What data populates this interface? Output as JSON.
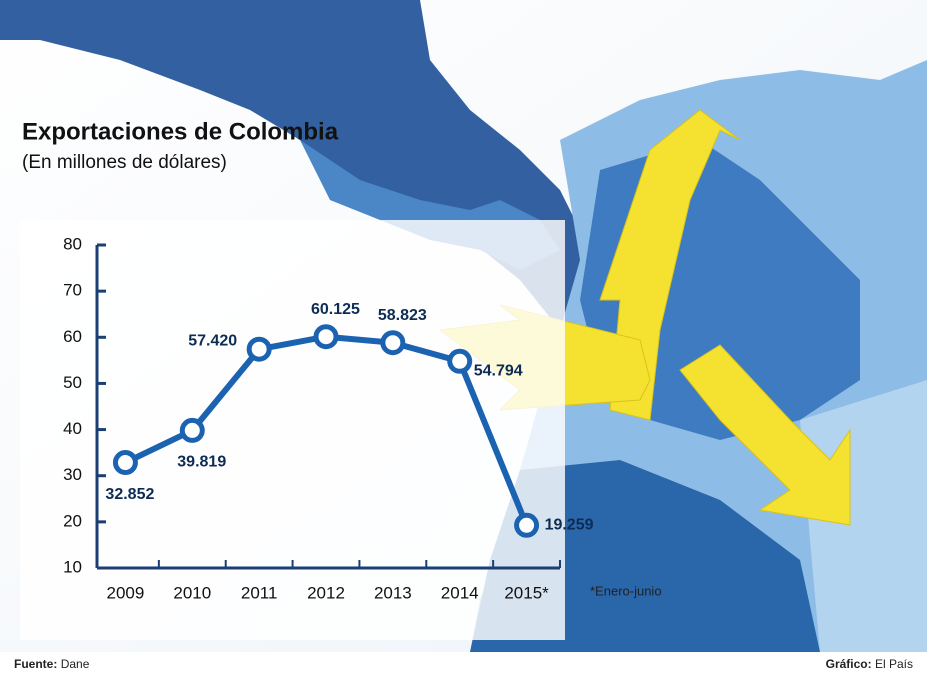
{
  "chart_data": {
    "type": "line",
    "title": "Exportaciones de Colombia",
    "subtitle": "(En millones de dólares)",
    "categories": [
      "2009",
      "2010",
      "2011",
      "2012",
      "2013",
      "2014",
      "2015*"
    ],
    "series": [
      {
        "name": "Exportaciones",
        "color": "#1b63b0",
        "values": [
          32.852,
          39.819,
          57.42,
          60.125,
          58.823,
          54.794,
          19.259
        ],
        "value_labels": [
          "32.852",
          "39.819",
          "57.420",
          "60.125",
          "58.823",
          "54.794",
          "19.259"
        ]
      }
    ],
    "ylim": [
      10,
      80
    ],
    "yticks": [
      10,
      20,
      30,
      40,
      50,
      60,
      70,
      80
    ],
    "note": "*Enero-junio",
    "source_label": "Fuente:",
    "source": "Dane",
    "credit_label": "Gráfico:",
    "credit": "El País"
  }
}
